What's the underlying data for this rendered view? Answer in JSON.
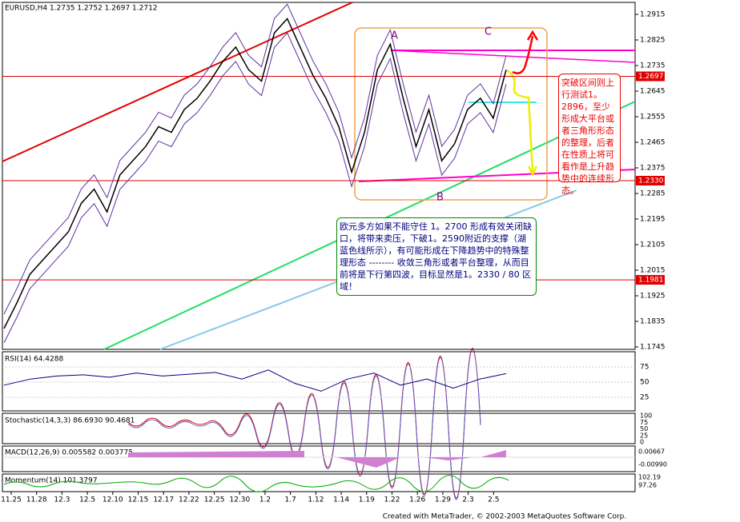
{
  "header": "EURUSD,H4  1.2735 1.2752 1.2697 1.2712",
  "price_axis": {
    "range": [
      1.1745,
      1.2915
    ],
    "ticks": [
      1.2915,
      1.2825,
      1.2735,
      1.2645,
      1.2555,
      1.2465,
      1.2375,
      1.2285,
      1.2195,
      1.2105,
      1.2015,
      1.1925,
      1.1835,
      1.1745
    ],
    "levels": [
      1.2697,
      1.233,
      1.1981
    ],
    "level_labels": [
      "1.2697",
      "1.2330",
      "1.1981"
    ]
  },
  "price_closes": [
    1.181,
    1.19,
    1.2,
    1.205,
    1.21,
    1.215,
    1.225,
    1.23,
    1.222,
    1.235,
    1.24,
    1.245,
    1.252,
    1.25,
    1.258,
    1.262,
    1.268,
    1.275,
    1.28,
    1.272,
    1.268,
    1.285,
    1.29,
    1.28,
    1.27,
    1.262,
    1.252,
    1.236,
    1.25,
    1.272,
    1.281,
    1.262,
    1.245,
    1.258,
    1.24,
    1.246,
    1.258,
    1.262,
    1.255,
    1.272
  ],
  "dates": [
    "11.25",
    "11.28",
    "12.3",
    "12.5",
    "12.10",
    "12.15",
    "12.17",
    "12.22",
    "12.25",
    "12.30",
    "1.2",
    "1.7",
    "1.12",
    "1.14",
    "1.19",
    "1.22",
    "1.26",
    "1.29",
    "2.3",
    "2.5"
  ],
  "labels": {
    "a": "A",
    "b": "B",
    "c": "C"
  },
  "note_red": "突破区间则上行测试1。2896，至少形成大平台或者三角形形态的整理，后者在性质上将可看作是上升趋势中的连续形态。",
  "note_green": "欧元多方如果不能守住 1。2700 形成有效关闭缺口，将带来卖压，下破1。2590附近的支撑（湖蓝色线所示），有可能形成在下降趋势中的特殊整理形态 -------- 收敛三角形或者平台整理，从而目前将是下行第四波，目标显然是1。2330 / 80 区域！",
  "rsi": {
    "title": "RSI(14) 64.4288",
    "ticks": [
      75,
      50,
      25
    ],
    "values": [
      45,
      55,
      60,
      62,
      58,
      65,
      60,
      63,
      66,
      55,
      70,
      48,
      35,
      55,
      65,
      45,
      55,
      40,
      55,
      64
    ]
  },
  "stochastic": {
    "title": "Stochastic(14,3,3) 86.6930 90.4681",
    "ticks": [
      100,
      75,
      50,
      25,
      0
    ]
  },
  "macd": {
    "title": "MACD(12,26,9) 0.005582 0.003775",
    "ticks": [
      "0.00667",
      "-0.00990"
    ]
  },
  "momentum": {
    "title": "Momentum(14) 101.3797",
    "ticks": [
      "102.19",
      "97.26"
    ]
  },
  "footer": "Created with MetaTrader, © 2002-2003 MetaQuotes Software Corp."
}
